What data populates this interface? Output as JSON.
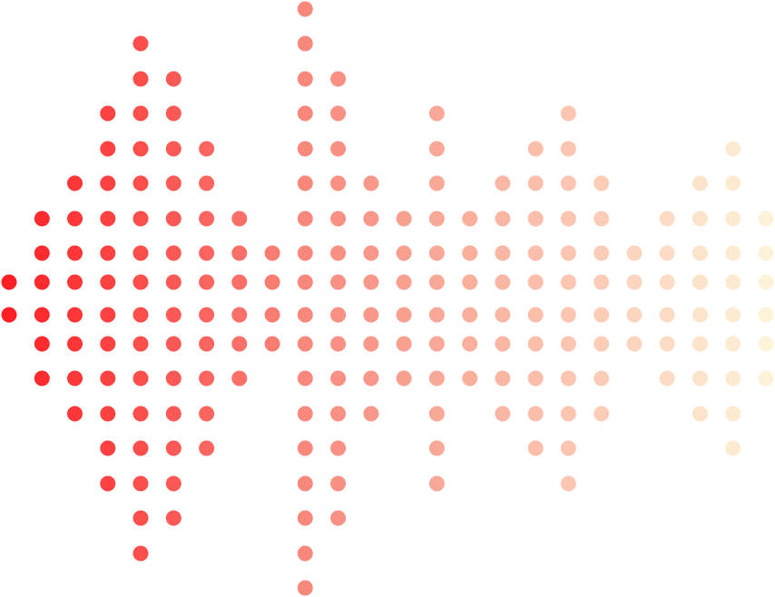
{
  "graphic": {
    "kind": "dot-matrix sound wave",
    "colors": {
      "start": "#ff1f24",
      "middle": "#f88a7e",
      "end": "#fdf3d8",
      "background": "#ffffff"
    },
    "row_count": 18,
    "columns": [
      {
        "rows": [
          8,
          9
        ]
      },
      {
        "rows": [
          6,
          11
        ]
      },
      {
        "rows": [
          5,
          12
        ]
      },
      {
        "rows": [
          3,
          14
        ]
      },
      {
        "rows": [
          1,
          16
        ]
      },
      {
        "rows": [
          2,
          15
        ]
      },
      {
        "rows": [
          4,
          13
        ]
      },
      {
        "rows": [
          6,
          11
        ]
      },
      {
        "rows": [
          7,
          10
        ]
      },
      {
        "rows": [
          0,
          17
        ]
      },
      {
        "rows": [
          2,
          15
        ]
      },
      {
        "rows": [
          5,
          12
        ]
      },
      {
        "rows": [
          6,
          11
        ]
      },
      {
        "rows": [
          3,
          14
        ]
      },
      {
        "rows": [
          6,
          11
        ]
      },
      {
        "rows": [
          5,
          12
        ]
      },
      {
        "rows": [
          4,
          13
        ]
      },
      {
        "rows": [
          3,
          14
        ]
      },
      {
        "rows": [
          5,
          12
        ]
      },
      {
        "rows": [
          7,
          10
        ]
      },
      {
        "rows": [
          6,
          11
        ]
      },
      {
        "rows": [
          5,
          12
        ]
      },
      {
        "rows": [
          4,
          13
        ]
      },
      {
        "rows": [
          6,
          11
        ]
      }
    ]
  }
}
